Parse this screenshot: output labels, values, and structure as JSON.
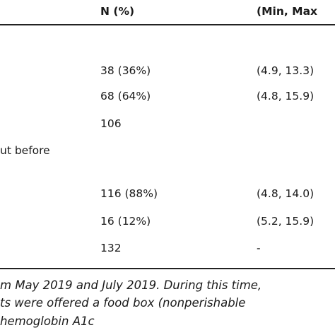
{
  "table": {
    "headers": {
      "n_pct": "N (%)",
      "range": "(Min, Max"
    },
    "group_label": "ut before",
    "rows": [
      {
        "n": "38 (36%)",
        "range": "(4.9, 13.3)"
      },
      {
        "n": "68 (64%)",
        "range": "(4.8, 15.9)"
      },
      {
        "n": "106",
        "range": ""
      },
      {
        "n": "116 (88%)",
        "range": "(4.8, 14.0)"
      },
      {
        "n": "16 (12%)",
        "range": "(5.2, 15.9)"
      },
      {
        "n": "132",
        "range": "-"
      }
    ]
  },
  "footnote": {
    "line1": "m May 2019 and July 2019. During this time,",
    "line2": "ts were offered a food box (nonperishable",
    "line3": "hemoglobin A1c"
  }
}
